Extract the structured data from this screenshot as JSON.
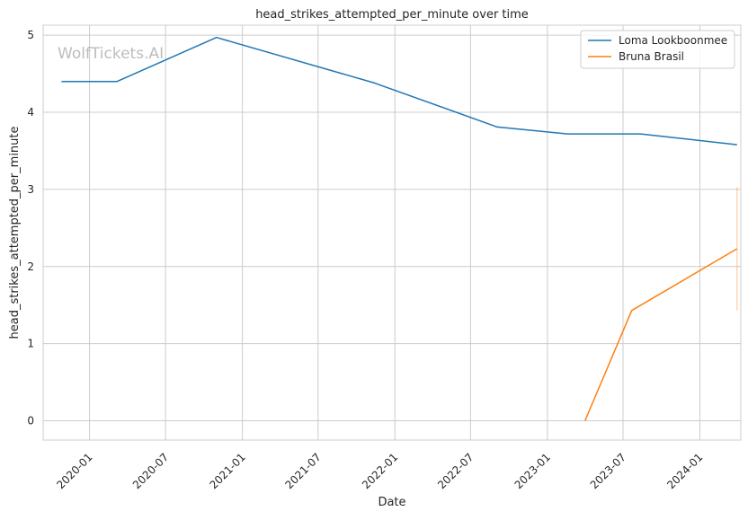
{
  "chart_data": {
    "type": "line",
    "title": "head_strikes_attempted_per_minute over time",
    "xlabel": "Date",
    "ylabel": "head_strikes_attempted_per_minute",
    "watermark": "WolfTickets.AI",
    "xlim": [
      "2019-09-12",
      "2024-04-08"
    ],
    "ylim": [
      -0.25,
      5.13
    ],
    "x_ticks": [
      "2020-01",
      "2020-07",
      "2021-01",
      "2021-07",
      "2022-01",
      "2022-07",
      "2023-01",
      "2023-07",
      "2024-01"
    ],
    "y_ticks": [
      0,
      1,
      2,
      3,
      4,
      5
    ],
    "grid": true,
    "legend_position": "top-right",
    "series": [
      {
        "name": "Loma Lookboonmee",
        "color": "#1f77b4",
        "points": [
          {
            "x": "2019-10-26",
            "y": 4.4
          },
          {
            "x": "2020-03-07",
            "y": 4.4
          },
          {
            "x": "2020-10-31",
            "y": 4.97
          },
          {
            "x": "2021-11-13",
            "y": 4.38
          },
          {
            "x": "2022-09-03",
            "y": 3.81
          },
          {
            "x": "2023-02-18",
            "y": 3.72
          },
          {
            "x": "2023-08-12",
            "y": 3.72
          },
          {
            "x": "2024-03-30",
            "y": 3.58
          }
        ]
      },
      {
        "name": "Bruna Brasil",
        "color": "#ff7f0e",
        "points": [
          {
            "x": "2023-04-01",
            "y": 0.0
          },
          {
            "x": "2023-07-22",
            "y": 1.43
          },
          {
            "x": "2024-03-30",
            "y": 2.23
          }
        ],
        "error_band": {
          "x": "2024-03-30",
          "low": 1.43,
          "high": 3.03
        }
      }
    ]
  }
}
